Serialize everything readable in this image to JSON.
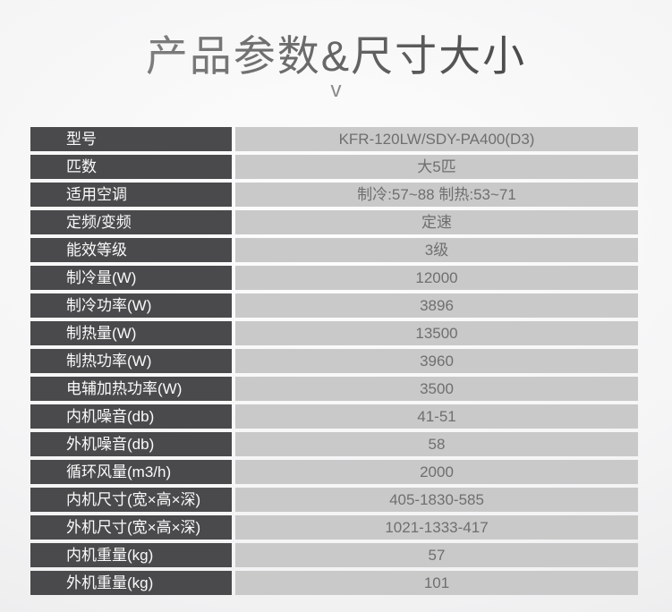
{
  "page": {
    "title": "产品参数&尺寸大小",
    "chevron": "v"
  },
  "colors": {
    "label_cell_bg": "#4a4a4c",
    "value_cell_bg": "#c9c9c9",
    "label_text": "#fafafa",
    "value_text": "#6f6f6f",
    "title_text": "#555555"
  },
  "table": {
    "rows": [
      {
        "label": "型号",
        "value": "KFR-120LW/SDY-PA400(D3)"
      },
      {
        "label": "匹数",
        "value": "大5匹"
      },
      {
        "label": "适用空调",
        "value": "制冷:57~88 制热:53~71"
      },
      {
        "label": "定频/变频",
        "value": "定速"
      },
      {
        "label": "能效等级",
        "value": "3级"
      },
      {
        "label": "制冷量(W)",
        "value": "12000"
      },
      {
        "label": "制冷功率(W)",
        "value": "3896"
      },
      {
        "label": "制热量(W)",
        "value": "13500"
      },
      {
        "label": "制热功率(W)",
        "value": "3960"
      },
      {
        "label": "电辅加热功率(W)",
        "value": "3500"
      },
      {
        "label": "内机噪音(db)",
        "value": "41-51"
      },
      {
        "label": "外机噪音(db)",
        "value": "58"
      },
      {
        "label": "循环风量(m3/h)",
        "value": "2000"
      },
      {
        "label": "内机尺寸(宽×高×深)",
        "value": "405-1830-585"
      },
      {
        "label": "外机尺寸(宽×高×深)",
        "value": "1021-1333-417"
      },
      {
        "label": "内机重量(kg)",
        "value": "57"
      },
      {
        "label": "外机重量(kg)",
        "value": "101"
      }
    ]
  }
}
